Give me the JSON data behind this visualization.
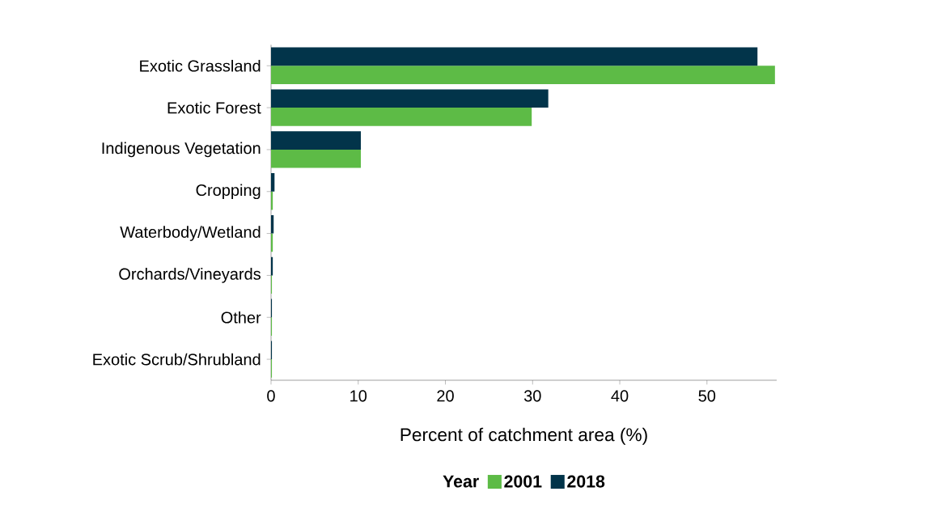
{
  "chart_data": {
    "type": "bar",
    "orientation": "horizontal",
    "xlabel": "Percent of catchment area (%)",
    "legend_title": "Year",
    "legend": "bottom",
    "categories": [
      "Exotic Grassland",
      "Exotic Forest",
      "Indigenous Vegetation",
      "Cropping",
      "Waterbody/Wetland",
      "Orchards/Vineyards",
      "Other",
      "Exotic Scrub/Shrubland"
    ],
    "series": [
      {
        "name": "2001",
        "color": "#5dbb46",
        "values": [
          57.8,
          29.9,
          10.3,
          0.2,
          0.2,
          0.1,
          0.1,
          0.1
        ]
      },
      {
        "name": "2018",
        "color": "#02344a",
        "values": [
          55.8,
          31.8,
          10.3,
          0.4,
          0.3,
          0.2,
          0.1,
          0.1
        ]
      }
    ],
    "xlim": [
      0,
      58
    ],
    "xticks": [
      0,
      10,
      20,
      30,
      40,
      50
    ],
    "grid": false
  }
}
